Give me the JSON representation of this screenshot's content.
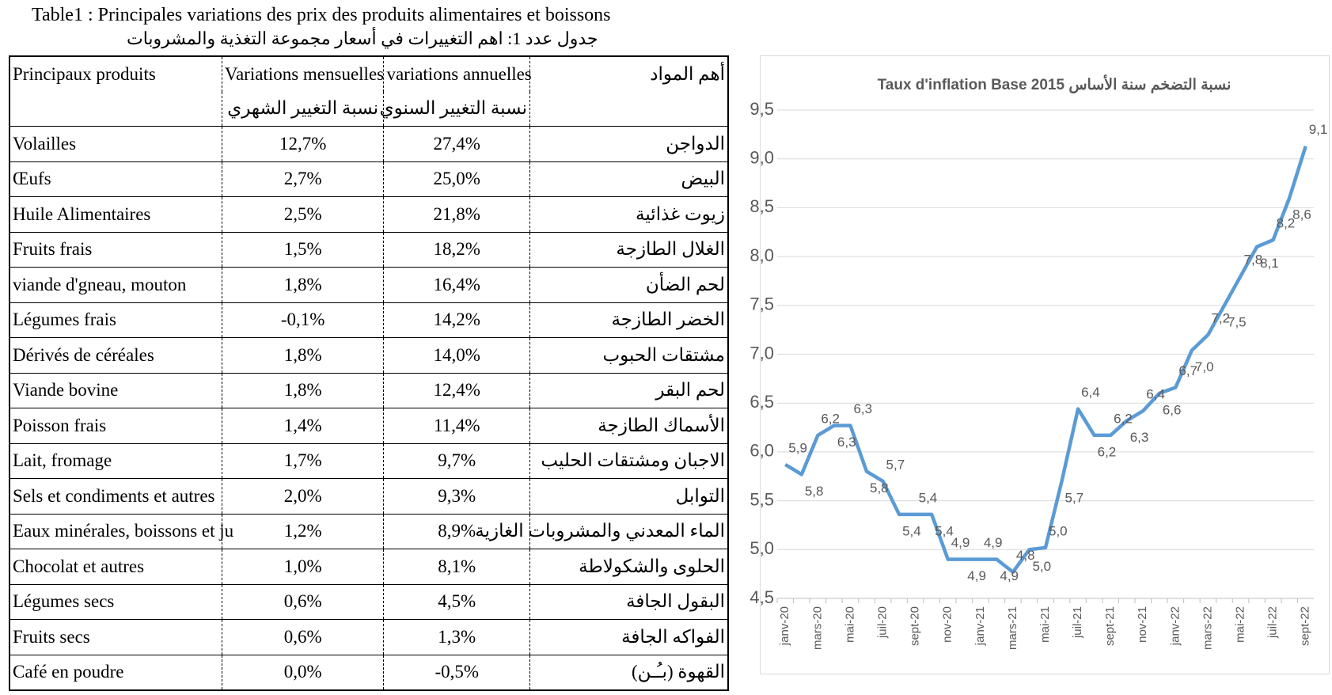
{
  "table": {
    "title": "Table1 : Principales variations des prix des produits alimentaires et boissons",
    "subtitle": "جدول عدد 1: اهم التغييرات في أسعار مجموعة التغذية والمشروبات",
    "header": [
      "Principaux produits",
      "Variations mensuelles",
      "variations annuelles",
      "أهم المواد"
    ],
    "subheader": {
      "monthly": "نسبة التغيير الشهري",
      "annual": "نسبة التغيير السنوي"
    },
    "rows": [
      [
        "Volailles",
        "12,7%",
        "27,4%",
        "الدواجن"
      ],
      [
        "Œufs",
        "2,7%",
        "25,0%",
        "البيض"
      ],
      [
        "Huile Alimentaires",
        "2,5%",
        "21,8%",
        "زيوت غذائية"
      ],
      [
        "Fruits frais",
        "1,5%",
        "18,2%",
        "الغلال الطازجة"
      ],
      [
        "viande d'gneau, mouton",
        "1,8%",
        "16,4%",
        "لحم الضأن"
      ],
      [
        "Légumes frais",
        "-0,1%",
        "14,2%",
        "الخضر الطازجة"
      ],
      [
        "Dérivés de céréales",
        "1,8%",
        "14,0%",
        "مشتقات الحبوب"
      ],
      [
        "Viande bovine",
        "1,8%",
        "12,4%",
        "لحم البقر"
      ],
      [
        "Poisson frais",
        "1,4%",
        "11,4%",
        "الأسماك الطازجة"
      ],
      [
        "Lait, fromage",
        "1,7%",
        "9,7%",
        "الاجبان ومشتقات الحليب"
      ],
      [
        "Sels et condiments et autres",
        "2,0%",
        "9,3%",
        "التوابل"
      ],
      [
        "Eaux minérales, boissons et ju",
        "1,2%",
        "8,9%",
        "الماء المعدني والمشروبات الغازية"
      ],
      [
        "Chocolat et autres",
        "1,0%",
        "8,1%",
        "الحلوى والشكولاطة"
      ],
      [
        "Légumes secs",
        "0,6%",
        "4,5%",
        "البقول الجافة"
      ],
      [
        "Fruits secs",
        "0,6%",
        "1,3%",
        "الفواكه الجافة"
      ],
      [
        "Café en poudre",
        "0,0%",
        "-0,5%",
        "القهوة (بـُـن)"
      ]
    ]
  },
  "chart_data": {
    "type": "line",
    "title": "Taux d'inflation Base  2015 نسبة التضخم سنة الأساس",
    "color": "#5b9bd5",
    "grid": true,
    "categories": [
      "janv-20",
      null,
      "mars-20",
      null,
      "mai-20",
      null,
      "juil-20",
      null,
      "sept-20",
      null,
      "nov-20",
      null,
      "janv-21",
      null,
      "mars-21",
      null,
      "mai-21",
      null,
      "juil-21",
      null,
      "sept-21",
      null,
      "nov-21",
      null,
      "janv-22",
      null,
      "mars-22",
      null,
      "mai-22",
      null,
      "juil-22",
      null,
      "sept-22"
    ],
    "values": [
      5.87,
      5.77,
      6.17,
      6.27,
      6.27,
      5.8,
      5.7,
      5.36,
      5.36,
      5.36,
      4.9,
      4.9,
      4.9,
      4.9,
      4.77,
      5.0,
      5.02,
      5.7,
      6.44,
      6.17,
      6.17,
      6.32,
      6.42,
      6.6,
      6.66,
      7.04,
      7.2,
      7.5,
      7.8,
      8.1,
      8.17,
      8.6,
      9.13
    ],
    "value_labels": [
      "5,9",
      "5,8",
      "6,2",
      "6,3",
      "6,3",
      "5,8",
      "5,7",
      "5,4",
      "5,4",
      "5,4",
      "4,9",
      "4,9",
      "4,9",
      "4,9",
      "4,8",
      "5,0",
      "5,0",
      "5,7",
      "6,4",
      "6,2",
      "6,2",
      "6,3",
      "6,4",
      "6,6",
      "6,7",
      "7,0",
      "7,2",
      "7,5",
      "7,8",
      "8,1",
      "8,2",
      "8,6",
      "9,1"
    ],
    "ylim": [
      4.5,
      9.5
    ],
    "yticks": [
      {
        "value": 4.5,
        "label": "4,5"
      },
      {
        "value": 5,
        "label": "5,0"
      },
      {
        "value": 5.5,
        "label": "5,5"
      },
      {
        "value": 6,
        "label": "6,0"
      },
      {
        "value": 6.5,
        "label": "6,5"
      },
      {
        "value": 7,
        "label": "7,0"
      },
      {
        "value": 7.5,
        "label": "7,5"
      },
      {
        "value": 8,
        "label": "8,0"
      },
      {
        "value": 8.5,
        "label": "8,5"
      },
      {
        "value": 9,
        "label": "9,0"
      },
      {
        "value": 9.5,
        "label": "9,5"
      }
    ]
  }
}
